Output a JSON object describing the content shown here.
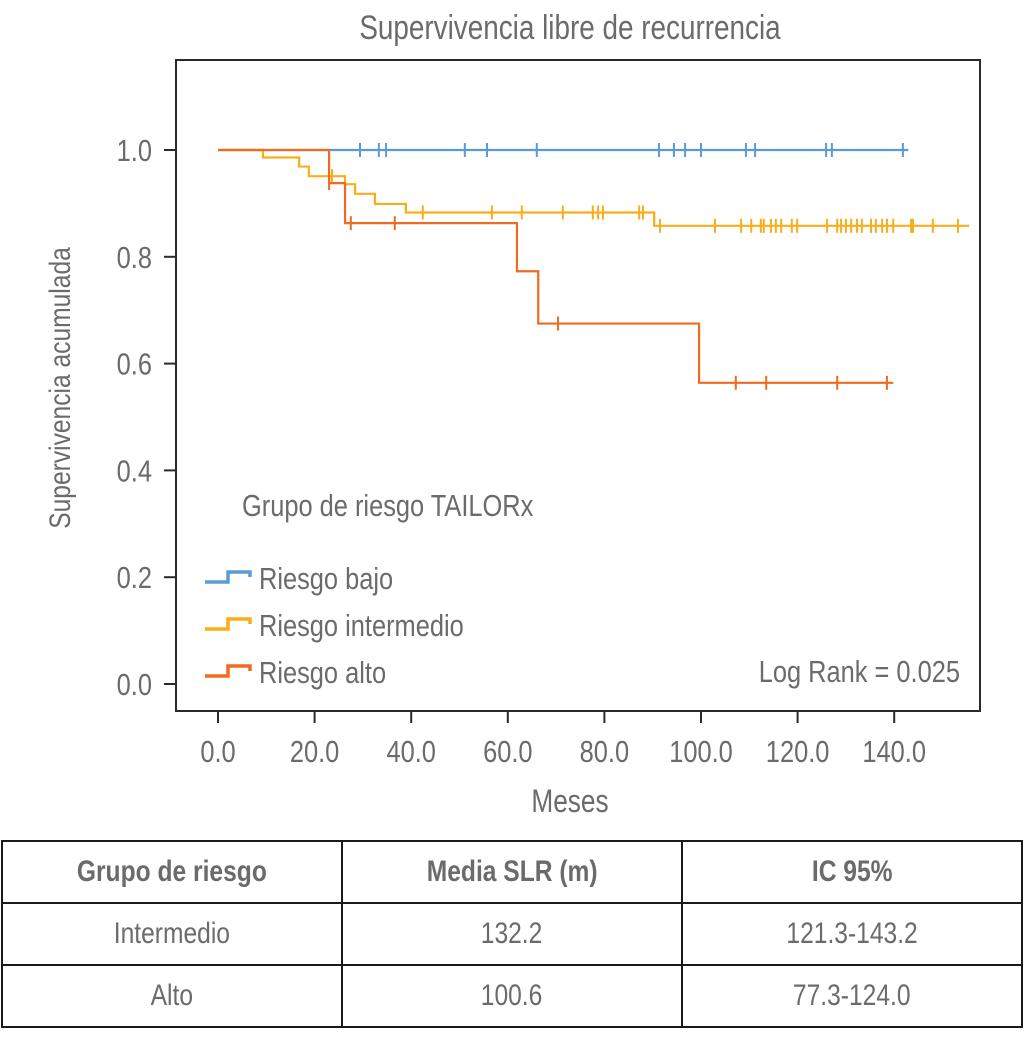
{
  "chart_data": {
    "type": "line",
    "subtype": "kaplan-meier",
    "title": "Supervivencia libre de recurrencia",
    "xlabel": "Meses",
    "ylabel": "Supervivencia acumulada",
    "xlim": [
      -9,
      157
    ],
    "ylim": [
      -0.05,
      1.16
    ],
    "x_ticks": [
      0,
      20,
      40,
      60,
      80,
      100,
      120,
      140
    ],
    "x_tick_labels": [
      "0.0",
      "20.0",
      "40.0",
      "60.0",
      "80.0",
      "100.0",
      "120.0",
      "140.0"
    ],
    "y_ticks": [
      0,
      0.2,
      0.4,
      0.6,
      0.8,
      1.0
    ],
    "y_tick_labels": [
      "0.0",
      "0.2",
      "0.4",
      "0.6",
      "0.8",
      "1.0"
    ],
    "grid": false,
    "legend": {
      "title": "Grupo de riesgo TAILORx",
      "placement": "bottom-left"
    },
    "annotation": "Log Rank = 0.025",
    "series": [
      {
        "name": "Riesgo bajo",
        "color": "#5b9bd5",
        "steps": [
          [
            0,
            1.0
          ]
        ],
        "end": 142.9,
        "censored": [
          29.4,
          33.3,
          34.8,
          51.1,
          55.7,
          66.0,
          91.3,
          94.4,
          96.7,
          100.0,
          109.3,
          111.2,
          125.9,
          127.1,
          141.8
        ]
      },
      {
        "name": "Riesgo intermedio",
        "color": "#fbad18",
        "steps": [
          [
            0,
            1.0
          ],
          [
            9.3,
            0.986
          ],
          [
            16.8,
            0.969
          ],
          [
            18.8,
            0.951
          ],
          [
            26.3,
            0.936
          ],
          [
            28.4,
            0.918
          ],
          [
            32.5,
            0.899
          ],
          [
            38.9,
            0.883
          ],
          [
            90.3,
            0.858
          ]
        ],
        "end": 155.5,
        "censored": [
          23.6,
          42.4,
          56.7,
          62.9,
          71.4,
          77.6,
          78.7,
          79.7,
          87.2,
          88.0,
          91.5,
          102.9,
          108.3,
          110.4,
          112.4,
          113.0,
          114.5,
          115.5,
          116.6,
          118.8,
          119.9,
          126.1,
          128.2,
          129.0,
          130.0,
          131.1,
          132.3,
          133.3,
          135.2,
          136.2,
          137.5,
          138.5,
          139.8,
          143.5,
          143.9,
          148.0,
          153.2
        ]
      },
      {
        "name": "Riesgo alto",
        "color": "#ee6b1f",
        "steps": [
          [
            0,
            1.0
          ],
          [
            23.0,
            0.938
          ],
          [
            26.3,
            0.863
          ],
          [
            61.9,
            0.773
          ],
          [
            66.3,
            0.675
          ],
          [
            99.6,
            0.564
          ]
        ],
        "end": 139.8,
        "censored": [
          23.0,
          27.5,
          36.6,
          70.4,
          107.2,
          113.5,
          128.2,
          138.5
        ]
      }
    ]
  },
  "table": {
    "headers": [
      "Grupo de riesgo",
      "Media SLR (m)",
      "IC 95%"
    ],
    "rows": [
      [
        "Intermedio",
        "132.2",
        "121.3-143.2"
      ],
      [
        "Alto",
        "100.6",
        "77.3-124.0"
      ]
    ]
  }
}
